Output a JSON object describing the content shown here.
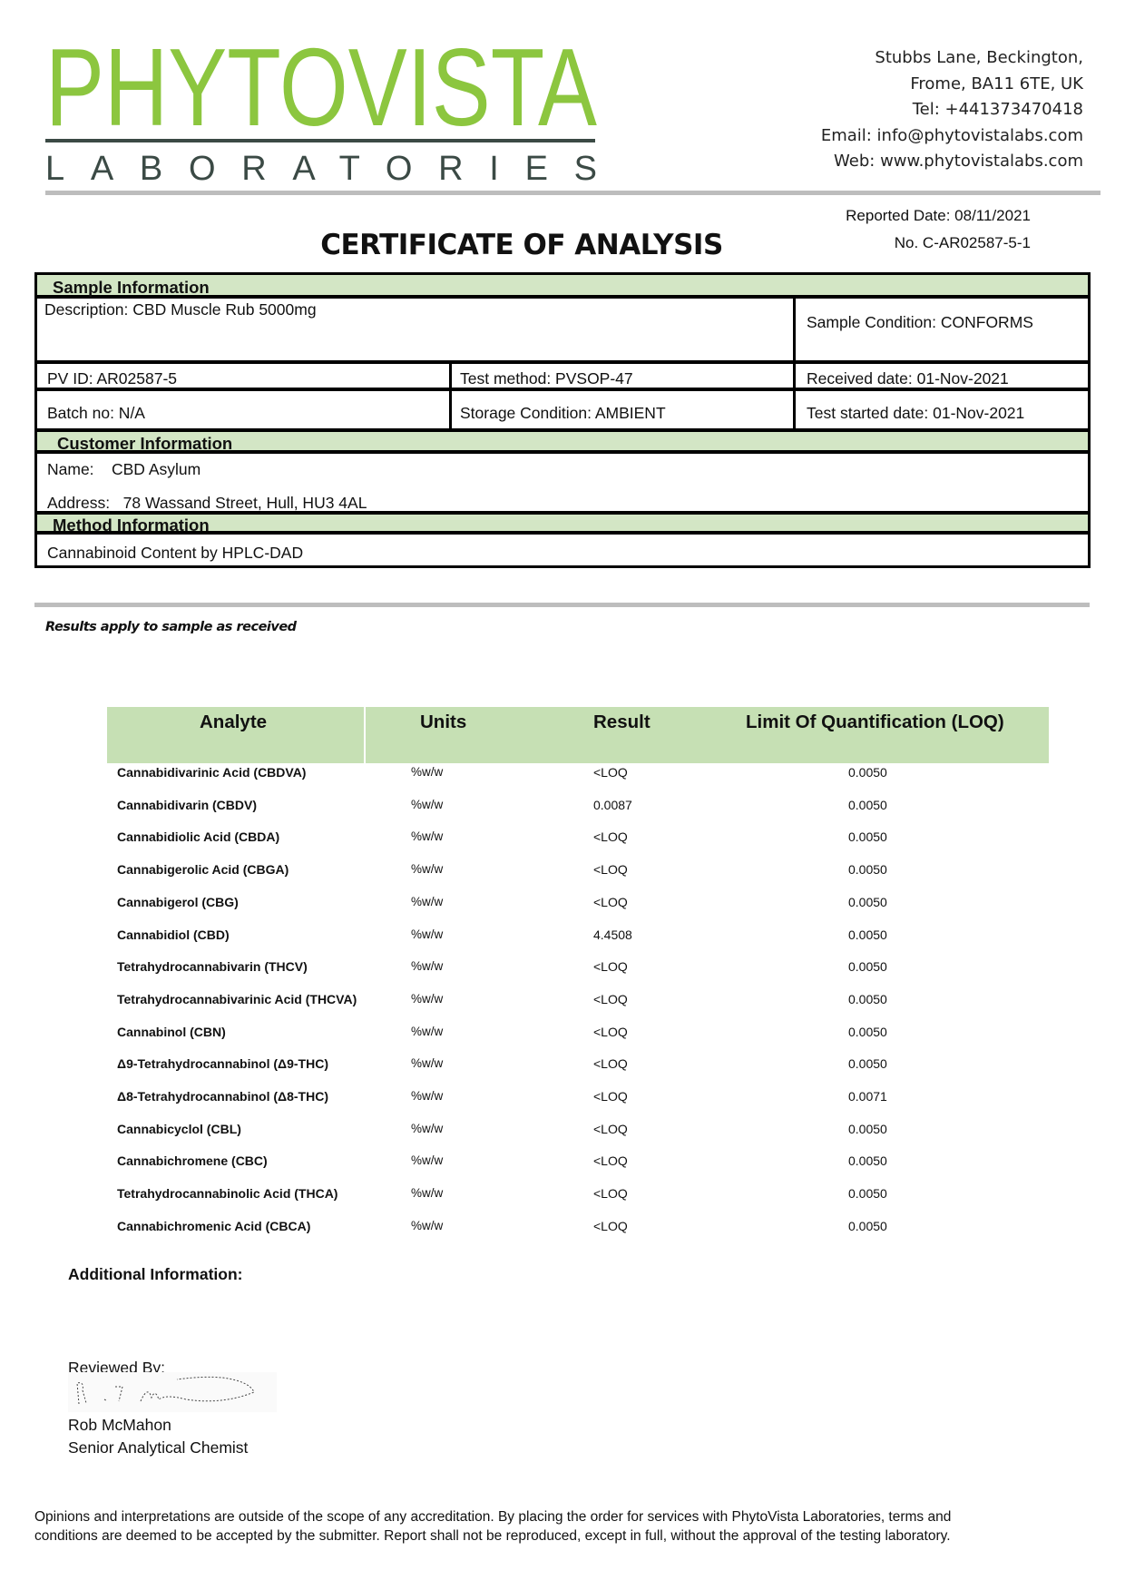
{
  "logo": {
    "name": "PHYTOVISTA",
    "sub": "LABORATORIES",
    "brand_green": "#8cc63f",
    "dark": "#3b4a45"
  },
  "address": {
    "lines": [
      "Stubbs Lane, Beckington,",
      "Frome, BA11 6TE, UK",
      "Tel: +441373470418",
      "Email: info@phytovistalabs.com",
      "Web: www.phytovistalabs.com"
    ]
  },
  "report": {
    "reported_date": "Reported Date: 08/11/2021",
    "number": "No. C-AR02587-5-1",
    "title": "CERTIFICATE OF ANALYSIS"
  },
  "sample": {
    "header": "Sample Information",
    "description": "Description: CBD Muscle Rub 5000mg",
    "condition": "Sample Condition: CONFORMS",
    "pv_id": "PV ID: AR02587-5",
    "test_method": "Test method: PVSOP-47",
    "received": "Received date: 01-Nov-2021",
    "batch": "Batch no: N/A",
    "storage": "Storage Condition: AMBIENT",
    "started": "Test started date: 01-Nov-2021"
  },
  "customer": {
    "header": "Customer Information",
    "name_label": "Name:",
    "name": "CBD Asylum",
    "address_label": "Address:",
    "address": "78 Wassand Street, Hull, HU3 4AL"
  },
  "method": {
    "header": "Method Information",
    "value": "Cannabinoid Content by HPLC-DAD"
  },
  "results_note": "Results apply to sample as received",
  "results": {
    "header_color": "#c6e0b4",
    "columns": [
      "Analyte",
      "Units",
      "Result",
      "Limit Of Quantification (LOQ)"
    ],
    "rows": [
      [
        "Cannabidivarinic Acid (CBDVA)",
        "%w/w",
        "<LOQ",
        "0.0050"
      ],
      [
        "Cannabidivarin (CBDV)",
        "%w/w",
        "0.0087",
        "0.0050"
      ],
      [
        "Cannabidiolic Acid (CBDA)",
        "%w/w",
        "<LOQ",
        "0.0050"
      ],
      [
        "Cannabigerolic Acid (CBGA)",
        "%w/w",
        "<LOQ",
        "0.0050"
      ],
      [
        "Cannabigerol (CBG)",
        "%w/w",
        "<LOQ",
        "0.0050"
      ],
      [
        "Cannabidiol (CBD)",
        "%w/w",
        "4.4508",
        "0.0050"
      ],
      [
        "Tetrahydrocannabivarin (THCV)",
        "%w/w",
        "<LOQ",
        "0.0050"
      ],
      [
        "Tetrahydrocannabivarinic Acid (THCVA)",
        "%w/w",
        "<LOQ",
        "0.0050"
      ],
      [
        "Cannabinol (CBN)",
        "%w/w",
        "<LOQ",
        "0.0050"
      ],
      [
        "Δ9-Tetrahydrocannabinol (Δ9-THC)",
        "%w/w",
        "<LOQ",
        "0.0050"
      ],
      [
        "Δ8-Tetrahydrocannabinol (Δ8-THC)",
        "%w/w",
        "<LOQ",
        "0.0071"
      ],
      [
        "Cannabicyclol (CBL)",
        "%w/w",
        "<LOQ",
        "0.0050"
      ],
      [
        "Cannabichromene (CBC)",
        "%w/w",
        "<LOQ",
        "0.0050"
      ],
      [
        "Tetrahydrocannabinolic Acid (THCA)",
        "%w/w",
        "<LOQ",
        "0.0050"
      ],
      [
        "Cannabichromenic Acid (CBCA)",
        "%w/w",
        "<LOQ",
        "0.0050"
      ]
    ]
  },
  "additional": {
    "label": "Additional Information:"
  },
  "review": {
    "label": "Reviewed By:",
    "name": "Rob McMahon",
    "role": "Senior Analytical Chemist"
  },
  "footer": "Opinions and interpretations are outside of the scope of any accreditation. By placing the order for services with PhytoVista Laboratories, terms and conditions are deemed to be accepted by the submitter. Report shall not be reproduced, except in full, without the approval of the testing laboratory."
}
